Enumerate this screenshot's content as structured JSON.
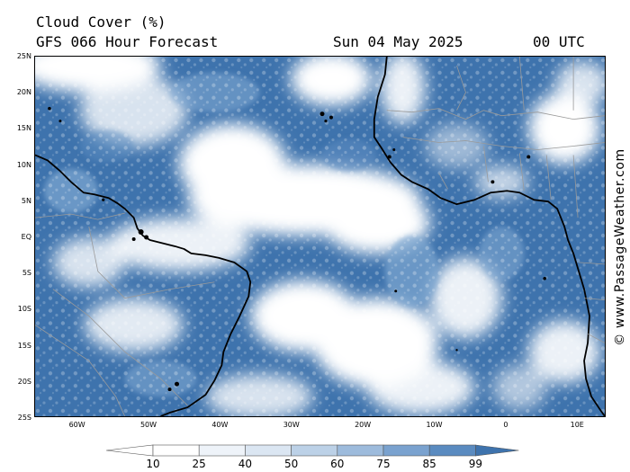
{
  "header": {
    "product": "Cloud Cover (%)",
    "model_forecast": "GFS 066 Hour Forecast",
    "date": "Sun 04 May 2025",
    "time": "00 UTC"
  },
  "credit": "© www.PassageWeather.com",
  "map": {
    "lat_range": [
      -25,
      25
    ],
    "lon_range": [
      -66,
      14
    ],
    "lat_labels": [
      "25N",
      "20N",
      "15N",
      "10N",
      "5N",
      "EQ",
      "5S",
      "10S",
      "15S",
      "20S",
      "25S"
    ],
    "lon_labels": [
      "60W",
      "50W",
      "40W",
      "30W",
      "20W",
      "10W",
      "0",
      "10E"
    ],
    "cloud_color_dark": "#3e73ad",
    "cloud_color_mid": "#7ea6d0",
    "cloud_color_light": "#ffffff"
  },
  "colorbar": {
    "levels": [
      "10",
      "25",
      "40",
      "50",
      "60",
      "75",
      "85",
      "99"
    ],
    "colors": [
      "#ffffff",
      "#eef3f9",
      "#dbe6f2",
      "#bcd1e7",
      "#9dbbdc",
      "#7aa2cf",
      "#5a8bc0",
      "#3e73ad"
    ]
  }
}
